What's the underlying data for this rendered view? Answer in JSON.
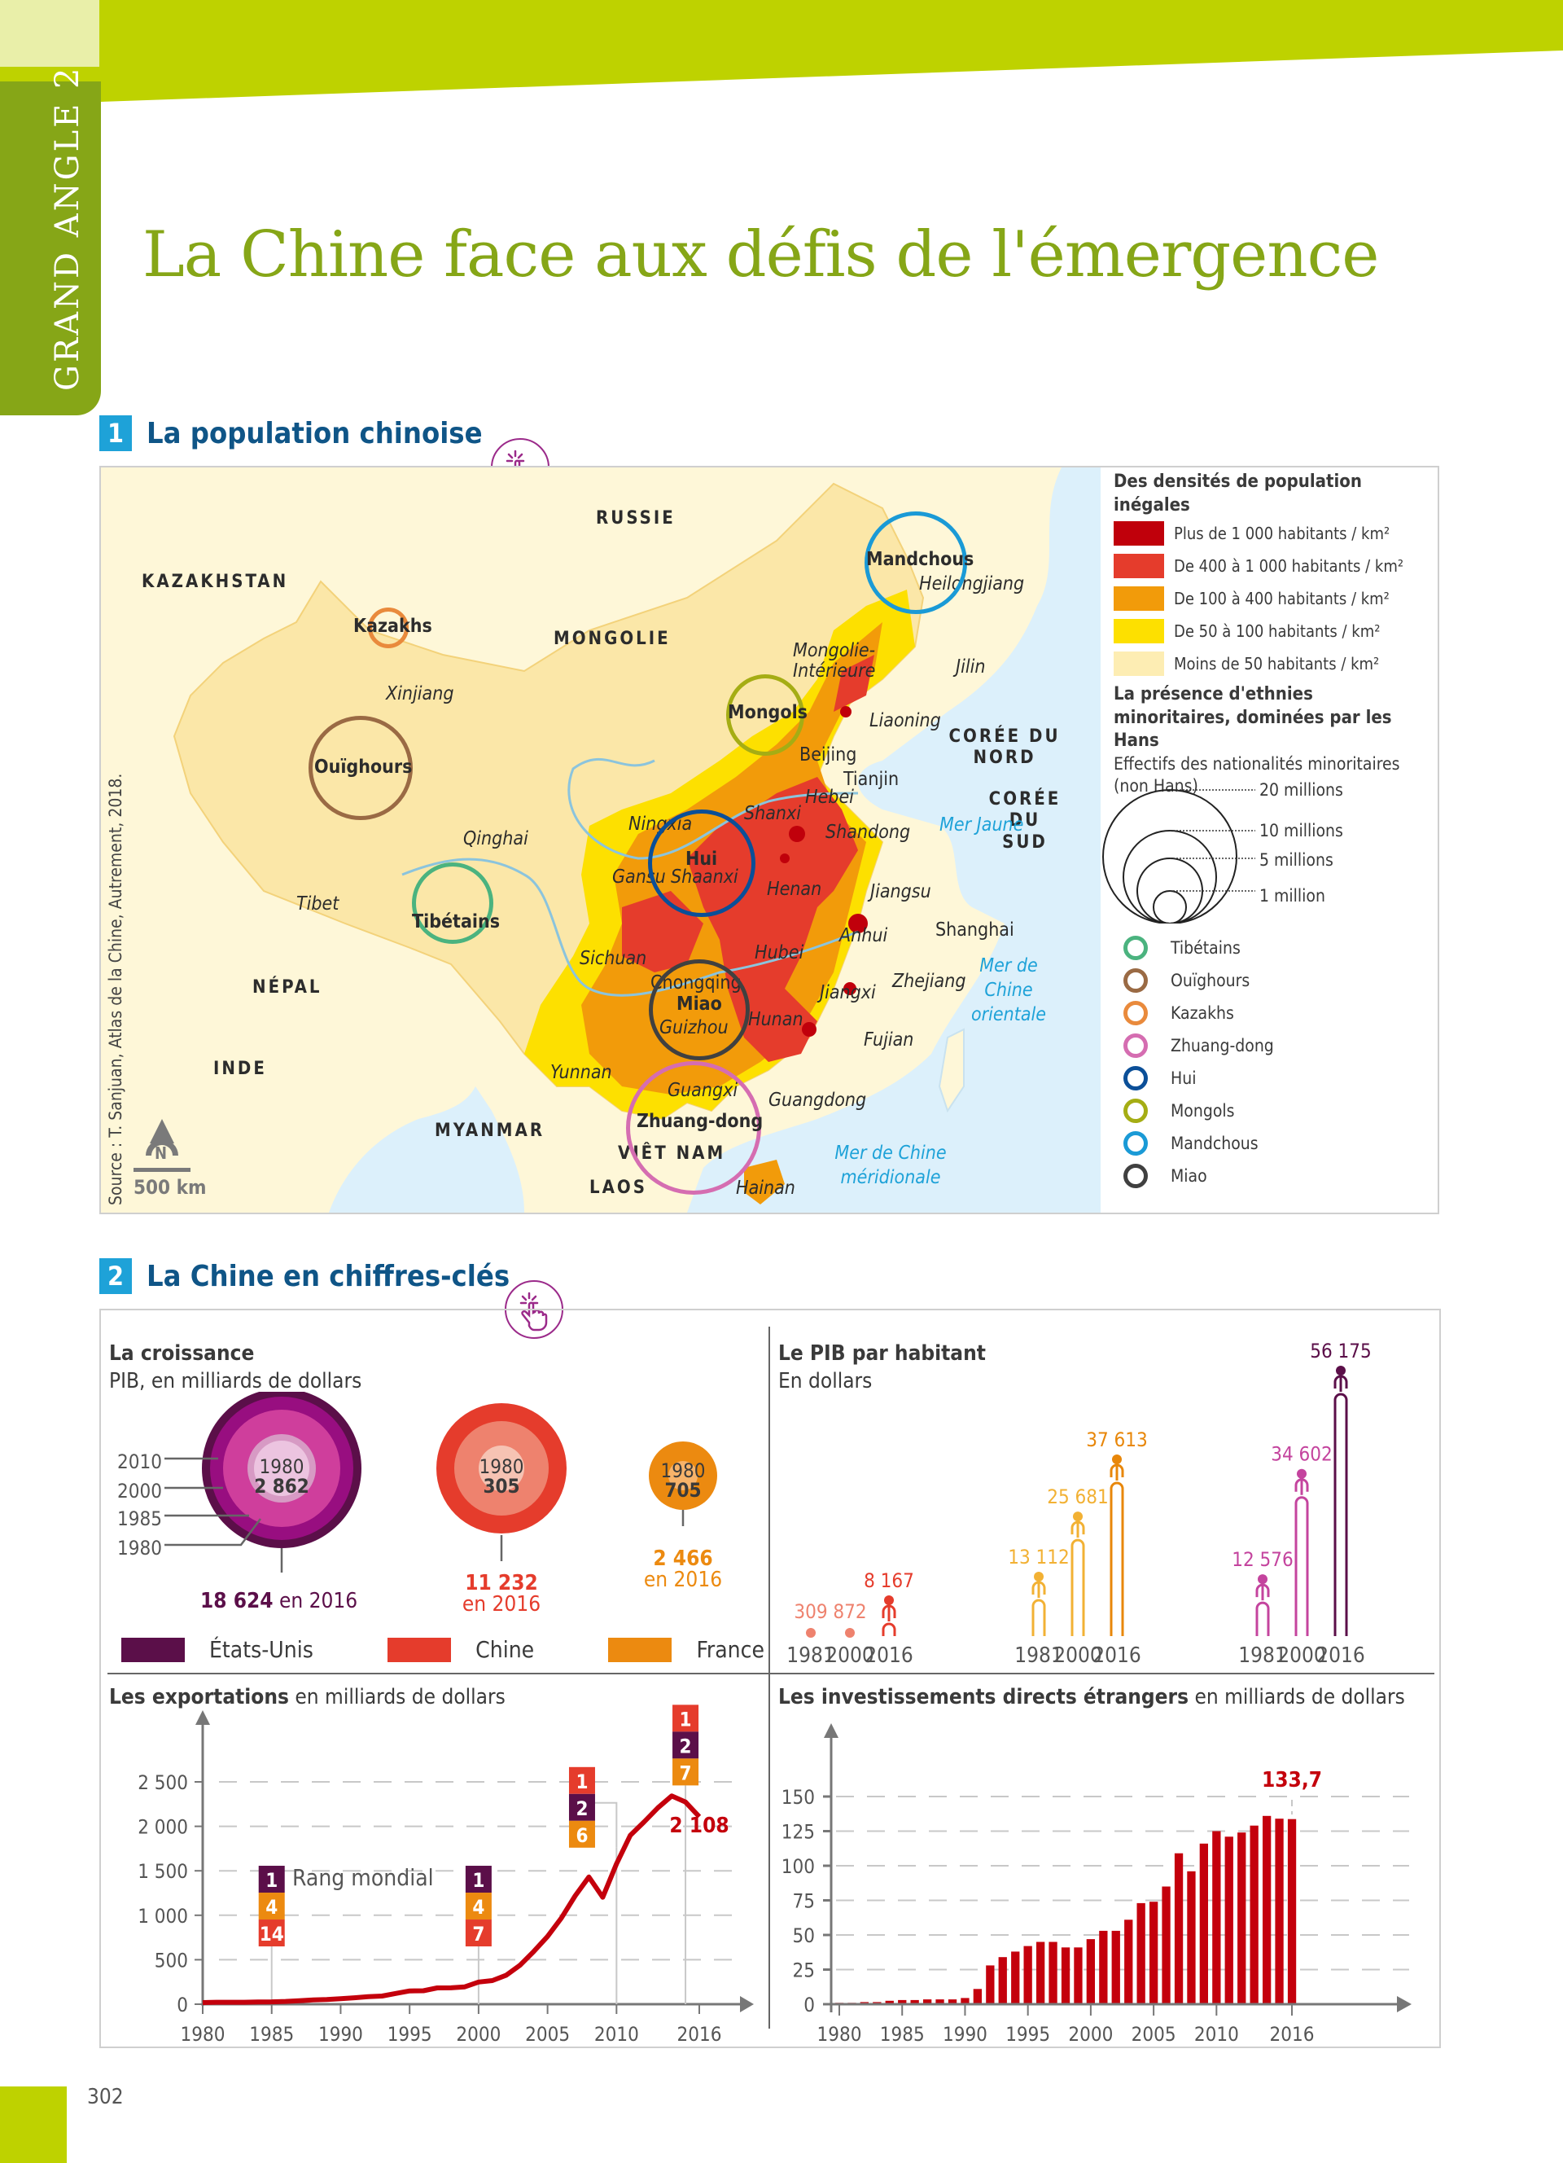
{
  "header": {
    "side_tab": "GRAND ANGLE 2",
    "title": "La Chine face aux défis de l'émergence",
    "colors": {
      "accent": "#bed200",
      "tab": "#86a617",
      "title": "#86a617"
    }
  },
  "section1": {
    "number": "1",
    "title": "La population chinoise",
    "source": "Source : T. Sanjuan, Atlas de la Chine, Autrement, 2018.",
    "scale": "500 km",
    "north": "N",
    "countries": [
      "RUSSIE",
      "KAZAKHSTAN",
      "MONGOLIE",
      "CORÉE DU NORD",
      "CORÉE DU SUD",
      "NÉPAL",
      "INDE",
      "MYANMAR",
      "VIÊT NAM",
      "LAOS"
    ],
    "provinces": [
      "Xinjiang",
      "Qinghai",
      "Tibet",
      "Mongolie-Intérieure",
      "Heilongjiang",
      "Jilin",
      "Liaoning",
      "Beijing",
      "Tianjin",
      "Hebei",
      "Shanxi",
      "Shandong",
      "Ningxia",
      "Gansu",
      "Shaanxi",
      "Henan",
      "Jiangsu",
      "Shanghai",
      "Anhui",
      "Sichuan",
      "Hubei",
      "Chongqing",
      "Guizhou",
      "Hunan",
      "Jiangxi",
      "Zhejiang",
      "Fujian",
      "Yunnan",
      "Guangxi",
      "Guangdong",
      "Hainan"
    ],
    "seas": [
      "Mer Jaune",
      "Mer de Chine orientale",
      "Mer de Chine méridionale"
    ],
    "ethnic_labels": [
      "Kazakhs",
      "Ouïghours",
      "Tibétains",
      "Mongols",
      "Mandchous",
      "Hui",
      "Miao",
      "Zhuang-dong"
    ],
    "legend": {
      "density_title": "Des densités de population inégales",
      "density": [
        {
          "label": "Plus de 1 000 habitants / km²",
          "color": "#c0000b"
        },
        {
          "label": "De 400 à 1 000 habitants / km²",
          "color": "#e53c2c"
        },
        {
          "label": "De 100 à 400 habitants / km²",
          "color": "#f29b0a"
        },
        {
          "label": "De 50 à 100 habitants / km²",
          "color": "#fde000"
        },
        {
          "label": "Moins de 50 habitants / km²",
          "color": "#fdedb3"
        }
      ],
      "ethnic_title": "La présence d'ethnies minoritaires, dominées par les Hans",
      "ethnic_subtitle": "Effectifs des nationalités minoritaires (non Hans)",
      "sizes": [
        "20 millions",
        "10 millions",
        "5 millions",
        "1 million"
      ],
      "ethnies": [
        {
          "label": "Tibétains",
          "color": "#4bb37f"
        },
        {
          "label": "Ouïghours",
          "color": "#9a6a44"
        },
        {
          "label": "Kazakhs",
          "color": "#e98a3c"
        },
        {
          "label": "Zhuang-dong",
          "color": "#d56db1"
        },
        {
          "label": "Hui",
          "color": "#0b4f98"
        },
        {
          "label": "Mongols",
          "color": "#a5ad14"
        },
        {
          "label": "Mandchous",
          "color": "#1a9ad6"
        },
        {
          "label": "Miao",
          "color": "#404040"
        }
      ]
    }
  },
  "section2": {
    "number": "2",
    "title": "La Chine en chiffres-clés",
    "croissance": {
      "title": "La croissance",
      "subtitle": "PIB, en milliards de dollars",
      "ring_years": [
        "2010",
        "2000",
        "1985",
        "1980"
      ],
      "usa": {
        "year_label": "1980",
        "v1980": "2 862",
        "v2016": "18 624",
        "suffix": " en 2016"
      },
      "chine": {
        "year_label": "1980",
        "v1980": "305",
        "v2016": "11 232",
        "suffix": "en 2016"
      },
      "france": {
        "year_label": "1980",
        "v1980": "705",
        "v2016": "2 466",
        "suffix": "en 2016"
      },
      "legend": [
        {
          "label": "États-Unis",
          "color": "#5b0f49"
        },
        {
          "label": "Chine",
          "color": "#e53c2c"
        },
        {
          "label": "France",
          "color": "#ec8a10"
        }
      ]
    },
    "pib_hab": {
      "title": "Le PIB par habitant",
      "subtitle": "En dollars"
    },
    "exports": {
      "title_bold": "Les exportations",
      "title_rest": " en milliards de dollars",
      "rank_label": "Rang mondial",
      "last_value": "2 108"
    },
    "ide": {
      "title_bold": "Les investissements directs étrangers",
      "title_rest": " en milliards de dollars",
      "last_value": "133,7"
    }
  },
  "chart_data": [
    {
      "type": "bar",
      "title": "La croissance — PIB, en milliards de dollars",
      "categories": [
        "États-Unis",
        "Chine",
        "France"
      ],
      "series": [
        {
          "name": "1980",
          "values": [
            2862,
            305,
            705
          ]
        },
        {
          "name": "2016",
          "values": [
            18624,
            11232,
            2466
          ]
        }
      ]
    },
    {
      "type": "bar",
      "title": "Le PIB par habitant — En dollars",
      "groups": [
        {
          "name": "Chine",
          "color": "#e53c2c",
          "x": [
            "1981",
            "2000",
            "2016"
          ],
          "values": [
            309,
            872,
            8167
          ]
        },
        {
          "name": "France",
          "color": "#f2b134",
          "x": [
            "1981",
            "2000",
            "2016"
          ],
          "values": [
            13112,
            25681,
            37613
          ]
        },
        {
          "name": "États-Unis",
          "color": "#c4449e",
          "x": [
            "1981",
            "2000",
            "2016"
          ],
          "values": [
            12576,
            34602,
            56175
          ]
        }
      ]
    },
    {
      "type": "line",
      "title": "Les exportations en milliards de dollars",
      "x": [
        1980,
        1981,
        1982,
        1983,
        1984,
        1985,
        1986,
        1987,
        1988,
        1989,
        1990,
        1991,
        1992,
        1993,
        1994,
        1995,
        1996,
        1997,
        1998,
        1999,
        2000,
        2001,
        2002,
        2003,
        2004,
        2005,
        2006,
        2007,
        2008,
        2009,
        2010,
        2011,
        2012,
        2013,
        2014,
        2015,
        2016
      ],
      "values": [
        18,
        22,
        22,
        22,
        26,
        27,
        31,
        39,
        48,
        53,
        62,
        72,
        85,
        92,
        121,
        149,
        151,
        183,
        184,
        195,
        249,
        266,
        326,
        438,
        593,
        762,
        969,
        1218,
        1430,
        1202,
        1578,
        1899,
        2049,
        2209,
        2342,
        2273,
        2108
      ],
      "xlabel": "",
      "ylabel": "",
      "xticks": [
        "1980",
        "1985",
        "1990",
        "1995",
        "2000",
        "2005",
        "2010",
        "2016"
      ],
      "yticks": [
        "0",
        "500",
        "1 000",
        "1 500",
        "2 000",
        "2 500"
      ],
      "ylim": [
        0,
        2700
      ],
      "ranks": [
        {
          "year": 1985,
          "usa": "1",
          "france": "4",
          "chine": "14"
        },
        {
          "year": 2000,
          "usa": "1",
          "france": "4",
          "chine": "7"
        },
        {
          "year": 2010,
          "chine": "1",
          "usa": "2",
          "france": "6"
        },
        {
          "year": 2016,
          "chine": "1",
          "usa": "2",
          "france": "7"
        }
      ],
      "annotation": "2 108"
    },
    {
      "type": "bar",
      "title": "Les investissements directs étrangers en milliards de dollars",
      "x": [
        1980,
        1981,
        1982,
        1983,
        1984,
        1985,
        1986,
        1987,
        1988,
        1989,
        1990,
        1991,
        1992,
        1993,
        1994,
        1995,
        1996,
        1997,
        1998,
        1999,
        2000,
        2001,
        2002,
        2003,
        2004,
        2005,
        2006,
        2007,
        2008,
        2009,
        2010,
        2011,
        2012,
        2013,
        2014,
        2015,
        2016
      ],
      "values": [
        1,
        1,
        1.5,
        1.5,
        2.5,
        3,
        3,
        3.5,
        3.5,
        3.5,
        4.5,
        11,
        28,
        34,
        38,
        42,
        45,
        45,
        41,
        41,
        47,
        53,
        53,
        61,
        73,
        74,
        85,
        109,
        96,
        116,
        125,
        121,
        124,
        129,
        136,
        134,
        133.7
      ],
      "xticks": [
        "1980",
        "1985",
        "1990",
        "1995",
        "2000",
        "2005",
        "2010",
        "2016"
      ],
      "yticks": [
        "0",
        "25",
        "50",
        "75",
        "100",
        "125",
        "150"
      ],
      "ylim": [
        0,
        155
      ],
      "annotation": "133,7"
    }
  ],
  "footer": {
    "page_number": "302"
  }
}
